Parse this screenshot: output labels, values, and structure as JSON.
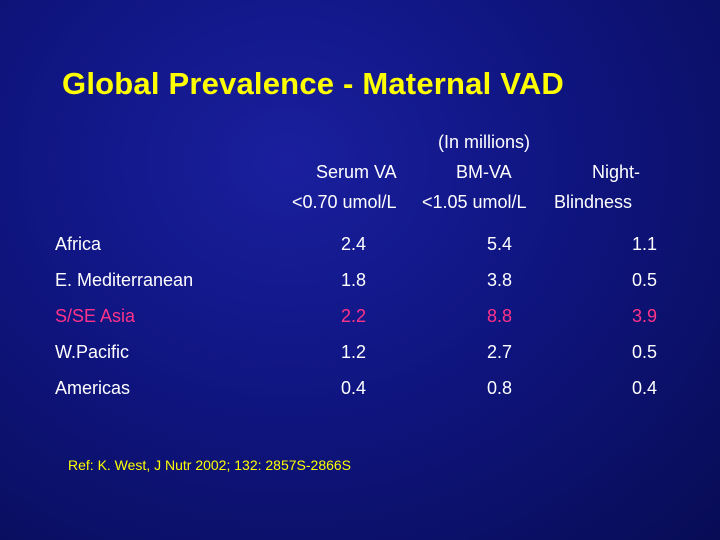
{
  "title": "Global Prevalence - Maternal VAD",
  "units": "(In millions)",
  "headers": {
    "col1_line1": "Serum VA",
    "col2_line1": "BM-VA",
    "col3_line1": "Night-",
    "col1_line2": "<0.70 umol/L",
    "col2_line2": "<1.05 umol/L",
    "col3_line2": "Blindness"
  },
  "rows": [
    {
      "region": "Africa",
      "serum_va": "2.4",
      "bm_va": "5.4",
      "night_blindness": "1.1"
    },
    {
      "region": "E. Mediterranean",
      "serum_va": "1.8",
      "bm_va": "3.8",
      "night_blindness": "0.5"
    },
    {
      "region": "S/SE Asia",
      "serum_va": "2.2",
      "bm_va": "8.8",
      "night_blindness": "3.9"
    },
    {
      "region": "W.Pacific",
      "serum_va": "1.2",
      "bm_va": "2.7",
      "night_blindness": "0.5"
    },
    {
      "region": "Americas",
      "serum_va": "0.4",
      "bm_va": "0.8",
      "night_blindness": "0.4"
    }
  ],
  "highlight_color": "#ff3388",
  "title_color": "#ffff00",
  "reference": "Ref: K. West, J Nutr 2002; 132: 2857S-2866S"
}
